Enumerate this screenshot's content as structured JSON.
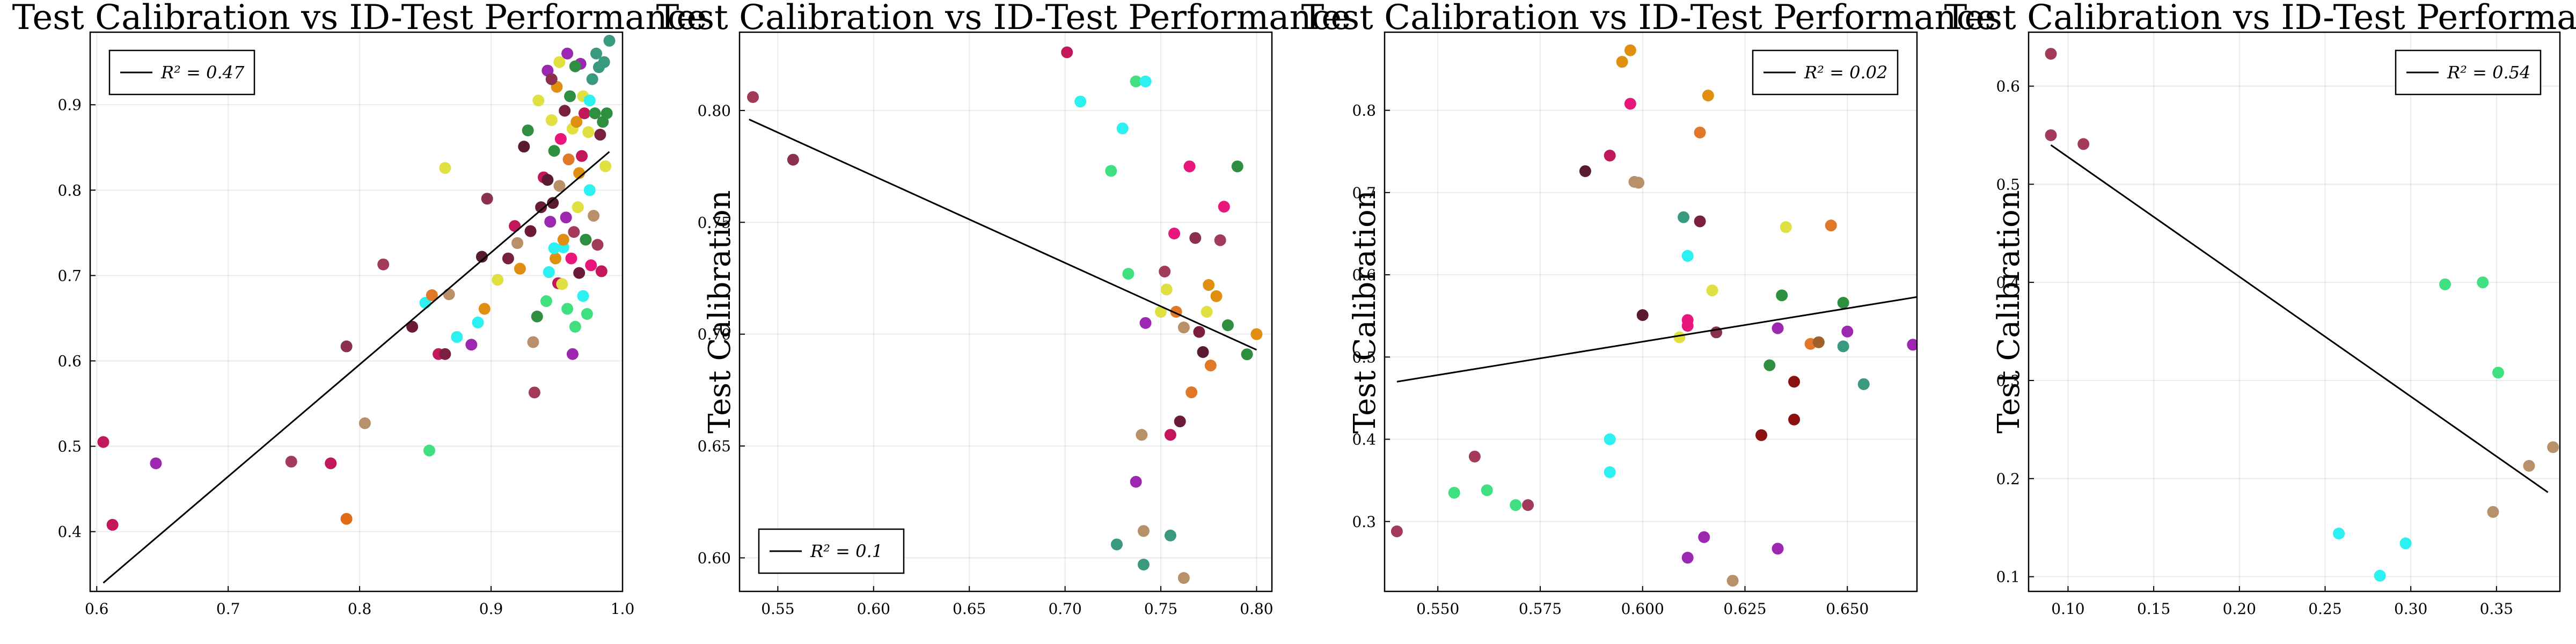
{
  "chart_data": [
    {
      "type": "scatter",
      "title": "Test Calibration vs ID-Test Performance",
      "ylabel": "",
      "xlim": [
        0.595,
        1.0
      ],
      "ylim": [
        0.33,
        0.985
      ],
      "xticks": [
        "0.6",
        "0.7",
        "0.8",
        "0.9",
        "1.0"
      ],
      "yticks": [
        "0.4",
        "0.5",
        "0.6",
        "0.7",
        "0.8",
        "0.9"
      ],
      "xtick_values": [
        0.6,
        0.7,
        0.8,
        0.9,
        1.0
      ],
      "ytick_values": [
        0.4,
        0.5,
        0.6,
        0.7,
        0.8,
        0.9
      ],
      "legend": {
        "label": "R² = 0.47",
        "position": "top-left"
      },
      "fit": [
        [
          0.605,
          0.34
        ],
        [
          0.99,
          0.845
        ]
      ],
      "points": [
        [
          0.605,
          0.505,
          "#c2185b"
        ],
        [
          0.612,
          0.408,
          "#c2185b"
        ],
        [
          0.645,
          0.48,
          "#9c27b0"
        ],
        [
          0.748,
          0.482,
          "#a23a5a"
        ],
        [
          0.778,
          0.48,
          "#c2185b"
        ],
        [
          0.79,
          0.415,
          "#e06c16"
        ],
        [
          0.79,
          0.617,
          "#8b3050"
        ],
        [
          0.804,
          0.527,
          "#b8906a"
        ],
        [
          0.818,
          0.713,
          "#a23a5a"
        ],
        [
          0.84,
          0.64,
          "#6b1a3a"
        ],
        [
          0.85,
          0.668,
          "#2df0f0"
        ],
        [
          0.853,
          0.495,
          "#40e080"
        ],
        [
          0.855,
          0.677,
          "#e07828"
        ],
        [
          0.86,
          0.608,
          "#c2185b"
        ],
        [
          0.865,
          0.608,
          "#7a1f3f"
        ],
        [
          0.865,
          0.826,
          "#e0e040"
        ],
        [
          0.868,
          0.678,
          "#b8906a"
        ],
        [
          0.874,
          0.628,
          "#2df0f0"
        ],
        [
          0.885,
          0.619,
          "#9c27b0"
        ],
        [
          0.89,
          0.645,
          "#2df0f0"
        ],
        [
          0.893,
          0.722,
          "#5a1a30"
        ],
        [
          0.895,
          0.661,
          "#e08f10"
        ],
        [
          0.897,
          0.79,
          "#8b3050"
        ],
        [
          0.905,
          0.695,
          "#e0e040"
        ],
        [
          0.913,
          0.72,
          "#7a1f3f"
        ],
        [
          0.918,
          0.758,
          "#c2185b"
        ],
        [
          0.92,
          0.738,
          "#b8906a"
        ],
        [
          0.922,
          0.708,
          "#e08f10"
        ],
        [
          0.925,
          0.851,
          "#5a1a30"
        ],
        [
          0.928,
          0.87,
          "#2f8f40"
        ],
        [
          0.93,
          0.752,
          "#6b1a3a"
        ],
        [
          0.932,
          0.622,
          "#b8906a"
        ],
        [
          0.933,
          0.563,
          "#a23a5a"
        ],
        [
          0.935,
          0.652,
          "#2f8f40"
        ],
        [
          0.936,
          0.905,
          "#e0e040"
        ],
        [
          0.94,
          0.815,
          "#c2185b"
        ],
        [
          0.942,
          0.67,
          "#40e080"
        ],
        [
          0.943,
          0.94,
          "#9c27b0"
        ],
        [
          0.944,
          0.704,
          "#2df0f0"
        ],
        [
          0.945,
          0.763,
          "#9c27b0"
        ],
        [
          0.946,
          0.882,
          "#e0e040"
        ],
        [
          0.947,
          0.785,
          "#5a1a30"
        ],
        [
          0.948,
          0.846,
          "#2f8f40"
        ],
        [
          0.949,
          0.72,
          "#e08f10"
        ],
        [
          0.95,
          0.921,
          "#e08f10"
        ],
        [
          0.951,
          0.691,
          "#c2185b"
        ],
        [
          0.952,
          0.805,
          "#b8906a"
        ],
        [
          0.953,
          0.86,
          "#e8167a"
        ],
        [
          0.954,
          0.69,
          "#e0e040"
        ],
        [
          0.955,
          0.733,
          "#2df0f0"
        ],
        [
          0.956,
          0.893,
          "#7a1f3f"
        ],
        [
          0.957,
          0.768,
          "#9c27b0"
        ],
        [
          0.958,
          0.661,
          "#40e080"
        ],
        [
          0.959,
          0.836,
          "#e07828"
        ],
        [
          0.96,
          0.91,
          "#2f8f40"
        ],
        [
          0.961,
          0.72,
          "#e8167a"
        ],
        [
          0.962,
          0.872,
          "#e0e040"
        ],
        [
          0.963,
          0.751,
          "#a23a5a"
        ],
        [
          0.964,
          0.64,
          "#40e080"
        ],
        [
          0.965,
          0.88,
          "#e08f10"
        ],
        [
          0.966,
          0.78,
          "#e0e040"
        ],
        [
          0.967,
          0.703,
          "#6b1a3a"
        ],
        [
          0.968,
          0.948,
          "#9c27b0"
        ],
        [
          0.969,
          0.84,
          "#c2185b"
        ],
        [
          0.97,
          0.676,
          "#2df0f0"
        ],
        [
          0.971,
          0.89,
          "#c2185b"
        ],
        [
          0.972,
          0.742,
          "#2f8f40"
        ],
        [
          0.973,
          0.655,
          "#40e080"
        ],
        [
          0.974,
          0.868,
          "#e0e040"
        ],
        [
          0.975,
          0.8,
          "#2df0f0"
        ],
        [
          0.976,
          0.712,
          "#e8167a"
        ],
        [
          0.977,
          0.93,
          "#3a9a80"
        ],
        [
          0.978,
          0.77,
          "#b8906a"
        ],
        [
          0.979,
          0.89,
          "#2f8f40"
        ],
        [
          0.98,
          0.96,
          "#3a9a80"
        ],
        [
          0.981,
          0.736,
          "#a23a5a"
        ],
        [
          0.982,
          0.944,
          "#3a9a80"
        ],
        [
          0.983,
          0.865,
          "#7a1f3f"
        ],
        [
          0.984,
          0.705,
          "#c2185b"
        ],
        [
          0.985,
          0.88,
          "#2f8f40"
        ],
        [
          0.986,
          0.95,
          "#3a9a80"
        ],
        [
          0.987,
          0.828,
          "#e0e040"
        ],
        [
          0.988,
          0.89,
          "#2f8f40"
        ],
        [
          0.99,
          0.975,
          "#3a9a80"
        ],
        [
          0.964,
          0.945,
          "#2f8f40"
        ],
        [
          0.958,
          0.96,
          "#9c27b0"
        ],
        [
          0.952,
          0.95,
          "#e0e040"
        ],
        [
          0.946,
          0.93,
          "#8b3050"
        ],
        [
          0.97,
          0.91,
          "#e0e040"
        ],
        [
          0.975,
          0.905,
          "#2df0f0"
        ],
        [
          0.967,
          0.82,
          "#e08f10"
        ],
        [
          0.943,
          0.812,
          "#5a1a30"
        ],
        [
          0.938,
          0.78,
          "#6b1a3a"
        ],
        [
          0.962,
          0.608,
          "#9c27b0"
        ],
        [
          0.955,
          0.742,
          "#e08f10"
        ],
        [
          0.948,
          0.732,
          "#2df0f0"
        ]
      ]
    },
    {
      "type": "scatter",
      "title": "Test Calibration vs ID-Test Performance",
      "ylabel": "Test Calibration",
      "xlim": [
        0.53,
        0.808
      ],
      "ylim": [
        0.585,
        0.835
      ],
      "xticks": [
        "0.55",
        "0.60",
        "0.65",
        "0.70",
        "0.75",
        "0.80"
      ],
      "yticks": [
        "0.60",
        "0.65",
        "0.70",
        "0.75",
        "0.80"
      ],
      "xtick_values": [
        0.55,
        0.6,
        0.65,
        0.7,
        0.75,
        0.8
      ],
      "ytick_values": [
        0.6,
        0.65,
        0.7,
        0.75,
        0.8
      ],
      "legend": {
        "label": "R² = 0.1",
        "position": "bottom-left"
      },
      "fit": [
        [
          0.535,
          0.796
        ],
        [
          0.8,
          0.693
        ]
      ],
      "points": [
        [
          0.537,
          0.806,
          "#a23a5a"
        ],
        [
          0.558,
          0.778,
          "#8b3050"
        ],
        [
          0.701,
          0.826,
          "#c2185b"
        ],
        [
          0.708,
          0.804,
          "#2df0f0"
        ],
        [
          0.724,
          0.773,
          "#40e080"
        ],
        [
          0.73,
          0.792,
          "#2df0f0"
        ],
        [
          0.737,
          0.813,
          "#40e080"
        ],
        [
          0.742,
          0.813,
          "#2df0f0"
        ],
        [
          0.733,
          0.727,
          "#40e080"
        ],
        [
          0.737,
          0.634,
          "#9c27b0"
        ],
        [
          0.74,
          0.655,
          "#b8906a"
        ],
        [
          0.741,
          0.612,
          "#b8906a"
        ],
        [
          0.742,
          0.705,
          "#9c27b0"
        ],
        [
          0.741,
          0.597,
          "#3a9a80"
        ],
        [
          0.727,
          0.606,
          "#3a9a80"
        ],
        [
          0.75,
          0.71,
          "#e0e040"
        ],
        [
          0.752,
          0.728,
          "#a23a5a"
        ],
        [
          0.753,
          0.72,
          "#e0e040"
        ],
        [
          0.755,
          0.61,
          "#3a9a80"
        ],
        [
          0.755,
          0.655,
          "#c2185b"
        ],
        [
          0.757,
          0.745,
          "#e8167a"
        ],
        [
          0.758,
          0.71,
          "#e07828"
        ],
        [
          0.76,
          0.661,
          "#6b1a3a"
        ],
        [
          0.762,
          0.703,
          "#b8906a"
        ],
        [
          0.762,
          0.591,
          "#b8906a"
        ],
        [
          0.765,
          0.775,
          "#e8167a"
        ],
        [
          0.766,
          0.674,
          "#e07828"
        ],
        [
          0.768,
          0.743,
          "#8b3050"
        ],
        [
          0.77,
          0.701,
          "#7a1f3f"
        ],
        [
          0.772,
          0.692,
          "#5a1a30"
        ],
        [
          0.774,
          0.71,
          "#e0e040"
        ],
        [
          0.775,
          0.722,
          "#e08f10"
        ],
        [
          0.776,
          0.686,
          "#e07828"
        ],
        [
          0.779,
          0.717,
          "#e08f10"
        ],
        [
          0.783,
          0.757,
          "#e8167a"
        ],
        [
          0.785,
          0.704,
          "#2f8f40"
        ],
        [
          0.79,
          0.775,
          "#2f8f40"
        ],
        [
          0.795,
          0.691,
          "#2f8f40"
        ],
        [
          0.8,
          0.7,
          "#e08f10"
        ],
        [
          0.781,
          0.742,
          "#a23a5a"
        ]
      ]
    },
    {
      "type": "scatter",
      "title": "Test Calibration vs ID-Test Performance",
      "ylabel": "Test Calibration",
      "xlim": [
        0.537,
        0.667
      ],
      "ylim": [
        0.215,
        0.895
      ],
      "xticks": [
        "0.550",
        "0.575",
        "0.600",
        "0.625",
        "0.650"
      ],
      "yticks": [
        "0.3",
        "0.4",
        "0.5",
        "0.6",
        "0.7",
        "0.8"
      ],
      "xtick_values": [
        0.55,
        0.575,
        0.6,
        0.625,
        0.65
      ],
      "ytick_values": [
        0.3,
        0.4,
        0.5,
        0.6,
        0.7,
        0.8
      ],
      "legend": {
        "label": "R² = 0.02",
        "position": "top-right"
      },
      "fit": [
        [
          0.54,
          0.47
        ],
        [
          0.667,
          0.573
        ]
      ],
      "points": [
        [
          0.54,
          0.288,
          "#a23a5a"
        ],
        [
          0.554,
          0.335,
          "#40e080"
        ],
        [
          0.559,
          0.379,
          "#a23a5a"
        ],
        [
          0.562,
          0.338,
          "#40e080"
        ],
        [
          0.569,
          0.32,
          "#40e080"
        ],
        [
          0.572,
          0.32,
          "#a23a5a"
        ],
        [
          0.586,
          0.726,
          "#5a1a30"
        ],
        [
          0.592,
          0.745,
          "#c2185b"
        ],
        [
          0.592,
          0.4,
          "#2df0f0"
        ],
        [
          0.592,
          0.36,
          "#2df0f0"
        ],
        [
          0.595,
          0.859,
          "#e08f10"
        ],
        [
          0.597,
          0.873,
          "#e08f10"
        ],
        [
          0.597,
          0.808,
          "#e8167a"
        ],
        [
          0.598,
          0.713,
          "#b8906a"
        ],
        [
          0.599,
          0.712,
          "#b8906a"
        ],
        [
          0.6,
          0.551,
          "#5a1a30"
        ],
        [
          0.609,
          0.524,
          "#e0e040"
        ],
        [
          0.61,
          0.67,
          "#3a9a80"
        ],
        [
          0.611,
          0.623,
          "#2df0f0"
        ],
        [
          0.611,
          0.545,
          "#e8167a"
        ],
        [
          0.611,
          0.538,
          "#e8167a"
        ],
        [
          0.611,
          0.256,
          "#9c27b0"
        ],
        [
          0.614,
          0.773,
          "#e07828"
        ],
        [
          0.614,
          0.665,
          "#7a1f3f"
        ],
        [
          0.615,
          0.281,
          "#9c27b0"
        ],
        [
          0.616,
          0.818,
          "#e08f10"
        ],
        [
          0.617,
          0.581,
          "#e0e040"
        ],
        [
          0.618,
          0.53,
          "#8b3050"
        ],
        [
          0.622,
          0.228,
          "#b8906a"
        ],
        [
          0.629,
          0.405,
          "#8b1010"
        ],
        [
          0.631,
          0.49,
          "#2f8f40"
        ],
        [
          0.633,
          0.535,
          "#9c27b0"
        ],
        [
          0.633,
          0.267,
          "#9c27b0"
        ],
        [
          0.634,
          0.575,
          "#2f8f40"
        ],
        [
          0.635,
          0.658,
          "#e0e040"
        ],
        [
          0.637,
          0.47,
          "#8b1010"
        ],
        [
          0.637,
          0.424,
          "#8b1010"
        ],
        [
          0.641,
          0.516,
          "#e07828"
        ],
        [
          0.643,
          0.518,
          "#a0602a"
        ],
        [
          0.646,
          0.66,
          "#e07828"
        ],
        [
          0.649,
          0.566,
          "#2f8f40"
        ],
        [
          0.649,
          0.513,
          "#3a9a80"
        ],
        [
          0.65,
          0.531,
          "#9c27b0"
        ],
        [
          0.654,
          0.467,
          "#3a9a80"
        ],
        [
          0.666,
          0.515,
          "#9c27b0"
        ]
      ]
    },
    {
      "type": "scatter",
      "title": "Test Calibration vs ID-Test Performance",
      "ylabel": "Test Calibration",
      "xlim": [
        0.077,
        0.387
      ],
      "ylim": [
        0.085,
        0.655
      ],
      "xticks": [
        "0.10",
        "0.15",
        "0.20",
        "0.25",
        "0.30",
        "0.35"
      ],
      "yticks": [
        "0.1",
        "0.2",
        "0.3",
        "0.4",
        "0.5",
        "0.6"
      ],
      "xtick_values": [
        0.1,
        0.15,
        0.2,
        0.25,
        0.3,
        0.35
      ],
      "ytick_values": [
        0.1,
        0.2,
        0.3,
        0.4,
        0.5,
        0.6
      ],
      "legend": {
        "label": "R² = 0.54",
        "position": "top-right"
      },
      "fit": [
        [
          0.09,
          0.54
        ],
        [
          0.38,
          0.186
        ]
      ],
      "points": [
        [
          0.09,
          0.633,
          "#a23a5a"
        ],
        [
          0.09,
          0.55,
          "#a23a5a"
        ],
        [
          0.109,
          0.541,
          "#a23a5a"
        ],
        [
          0.258,
          0.144,
          "#2df0f0"
        ],
        [
          0.282,
          0.101,
          "#2df0f0"
        ],
        [
          0.297,
          0.134,
          "#2df0f0"
        ],
        [
          0.32,
          0.398,
          "#40e080"
        ],
        [
          0.342,
          0.4,
          "#40e080"
        ],
        [
          0.351,
          0.308,
          "#40e080"
        ],
        [
          0.348,
          0.166,
          "#b8906a"
        ],
        [
          0.369,
          0.213,
          "#b8906a"
        ],
        [
          0.383,
          0.232,
          "#b8906a"
        ]
      ]
    }
  ]
}
